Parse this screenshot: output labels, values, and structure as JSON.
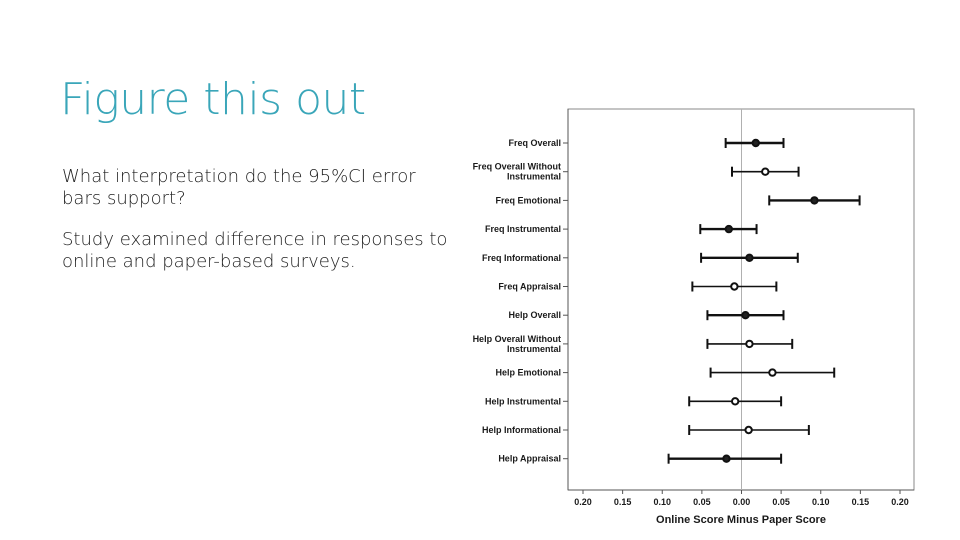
{
  "slide": {
    "title": "Figure this out",
    "paragraphs": [
      "What interpretation do the 95%CI error bars support?",
      "Study examined difference in responses to online and paper-based surveys."
    ]
  },
  "chart_data": {
    "type": "scatter",
    "subtype": "forest-plot-with-95ci-error-bars",
    "title": "",
    "xlabel": "Online Score Minus Paper Score",
    "ylabel": "",
    "xlim": [
      -0.2,
      0.2
    ],
    "xticks": [
      "0.20",
      "0.15",
      "0.10",
      "0.05",
      "0.00",
      "0.05",
      "0.10",
      "0.15",
      "0.20"
    ],
    "xtick_values": [
      -0.2,
      -0.15,
      -0.1,
      -0.05,
      0,
      0.05,
      0.1,
      0.15,
      0.2
    ],
    "grid": false,
    "reference_line_x": 0,
    "categories": [
      {
        "label": [
          "Freq Overall"
        ],
        "estimate": 0.018,
        "lower": -0.02,
        "upper": 0.053,
        "bold": true
      },
      {
        "label": [
          "Freq Overall Without",
          "Instrumental"
        ],
        "estimate": 0.03,
        "lower": -0.012,
        "upper": 0.072,
        "bold": false
      },
      {
        "label": [
          "Freq Emotional"
        ],
        "estimate": 0.092,
        "lower": 0.035,
        "upper": 0.149,
        "bold": true
      },
      {
        "label": [
          "Freq Instrumental"
        ],
        "estimate": -0.016,
        "lower": -0.052,
        "upper": 0.019,
        "bold": true
      },
      {
        "label": [
          "Freq Informational"
        ],
        "estimate": 0.01,
        "lower": -0.051,
        "upper": 0.071,
        "bold": true
      },
      {
        "label": [
          "Freq Appraisal"
        ],
        "estimate": -0.009,
        "lower": -0.062,
        "upper": 0.044,
        "bold": false
      },
      {
        "label": [
          "Help Overall"
        ],
        "estimate": 0.005,
        "lower": -0.043,
        "upper": 0.053,
        "bold": true
      },
      {
        "label": [
          "Help Overall Without",
          "Instrumental"
        ],
        "estimate": 0.01,
        "lower": -0.043,
        "upper": 0.064,
        "bold": false
      },
      {
        "label": [
          "Help Emotional"
        ],
        "estimate": 0.039,
        "lower": -0.039,
        "upper": 0.117,
        "bold": false
      },
      {
        "label": [
          "Help Instrumental"
        ],
        "estimate": -0.008,
        "lower": -0.066,
        "upper": 0.05,
        "bold": false
      },
      {
        "label": [
          "Help Informational"
        ],
        "estimate": 0.009,
        "lower": -0.066,
        "upper": 0.085,
        "bold": false
      },
      {
        "label": [
          "Help Appraisal"
        ],
        "estimate": -0.019,
        "lower": -0.092,
        "upper": 0.05,
        "bold": true
      }
    ]
  }
}
